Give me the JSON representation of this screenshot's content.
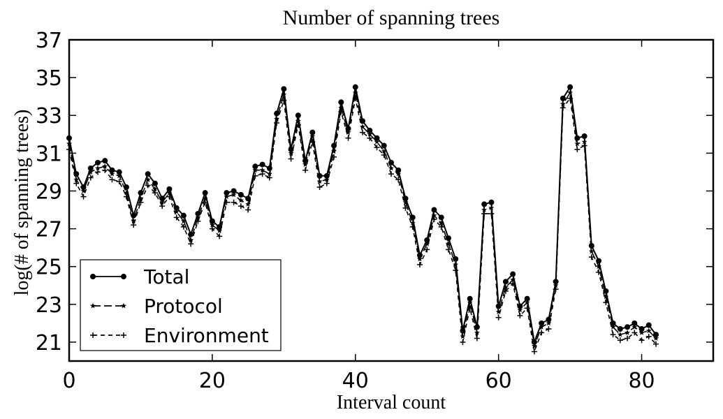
{
  "chart_data": {
    "type": "line",
    "title": "Number of spanning trees",
    "xlabel": "Interval count",
    "ylabel": "log(# of spanning trees)",
    "xlim": [
      0,
      90
    ],
    "ylim": [
      20,
      37
    ],
    "xticks": [
      0,
      20,
      40,
      60,
      80
    ],
    "yticks": [
      21,
      23,
      25,
      27,
      29,
      31,
      33,
      35,
      37
    ],
    "grid": false,
    "legend": "lower-left",
    "x": [
      0,
      1,
      2,
      3,
      4,
      5,
      6,
      7,
      8,
      9,
      10,
      11,
      12,
      13,
      14,
      15,
      16,
      17,
      18,
      19,
      20,
      21,
      22,
      23,
      24,
      25,
      26,
      27,
      28,
      29,
      30,
      31,
      32,
      33,
      34,
      35,
      36,
      37,
      38,
      39,
      40,
      41,
      42,
      43,
      44,
      45,
      46,
      47,
      48,
      49,
      50,
      51,
      52,
      53,
      54,
      55,
      56,
      57,
      58,
      59,
      60,
      61,
      62,
      63,
      64,
      65,
      66,
      67,
      68,
      69,
      70,
      71,
      72,
      73,
      74,
      75,
      76,
      77,
      78,
      79,
      80,
      81,
      82
    ],
    "series": [
      {
        "name": "Total",
        "marker": "circle",
        "dash": "solid",
        "values": [
          31.8,
          29.9,
          29.2,
          30.2,
          30.5,
          30.6,
          30.1,
          30.0,
          29.2,
          27.7,
          28.9,
          29.9,
          29.4,
          28.6,
          29.1,
          28.1,
          27.7,
          26.7,
          27.8,
          28.9,
          27.4,
          27.1,
          28.9,
          29.0,
          28.8,
          28.6,
          30.3,
          30.4,
          30.2,
          33.1,
          34.4,
          31.2,
          33.0,
          30.6,
          32.1,
          29.8,
          29.8,
          31.4,
          33.7,
          32.3,
          34.5,
          32.7,
          32.2,
          31.8,
          31.4,
          30.5,
          30.1,
          28.6,
          27.6,
          25.6,
          26.4,
          28.0,
          27.6,
          26.5,
          25.4,
          21.6,
          23.3,
          21.8,
          28.3,
          28.4,
          22.9,
          24.2,
          24.6,
          22.9,
          23.3,
          21.0,
          22.0,
          22.2,
          24.2,
          33.9,
          34.5,
          31.8,
          31.9,
          26.1,
          25.3,
          23.7,
          22.0,
          21.7,
          21.8,
          22.0,
          21.7,
          21.9,
          21.4
        ]
      },
      {
        "name": "Protocol",
        "marker": "star",
        "dash": "longdash",
        "values": [
          31.5,
          29.6,
          29.0,
          30.0,
          30.2,
          30.3,
          29.9,
          29.8,
          28.9,
          27.4,
          28.6,
          29.6,
          29.1,
          28.4,
          28.9,
          27.9,
          27.4,
          26.4,
          27.6,
          28.6,
          27.2,
          26.9,
          28.7,
          28.8,
          28.5,
          28.3,
          30.1,
          30.1,
          29.9,
          32.8,
          34.1,
          31.0,
          32.7,
          30.4,
          31.9,
          29.5,
          29.6,
          31.1,
          33.4,
          32.1,
          34.2,
          32.4,
          32.0,
          31.6,
          31.1,
          30.2,
          29.9,
          28.4,
          27.3,
          25.4,
          26.2,
          27.7,
          27.3,
          26.2,
          25.1,
          21.3,
          23.1,
          21.5,
          28.0,
          28.1,
          22.6,
          23.9,
          24.3,
          22.7,
          23.1,
          20.8,
          21.8,
          22.0,
          24.0,
          33.6,
          34.2,
          31.5,
          31.6,
          25.8,
          25.0,
          23.4,
          21.8,
          21.4,
          21.5,
          21.8,
          21.5,
          21.6,
          21.2
        ]
      },
      {
        "name": "Environment",
        "marker": "plus",
        "dash": "shortdash",
        "values": [
          31.2,
          29.4,
          28.7,
          29.7,
          30.0,
          30.1,
          29.6,
          29.5,
          28.7,
          27.2,
          28.4,
          29.3,
          28.9,
          28.2,
          28.7,
          27.6,
          27.1,
          26.2,
          27.4,
          28.4,
          27.0,
          26.6,
          28.4,
          28.4,
          28.2,
          28.0,
          29.8,
          29.9,
          29.7,
          32.6,
          33.8,
          30.7,
          32.5,
          30.1,
          31.6,
          29.2,
          29.4,
          30.8,
          33.2,
          31.8,
          33.9,
          32.1,
          31.8,
          31.3,
          30.9,
          29.9,
          29.6,
          28.1,
          27.1,
          25.1,
          25.9,
          27.5,
          27.1,
          25.9,
          24.8,
          21.0,
          22.8,
          21.2,
          27.8,
          27.8,
          22.3,
          23.7,
          24.1,
          22.4,
          22.8,
          20.5,
          21.5,
          21.7,
          23.8,
          33.4,
          33.9,
          31.2,
          31.4,
          25.5,
          24.7,
          23.1,
          21.4,
          21.1,
          21.2,
          21.5,
          21.1,
          21.3,
          20.9
        ]
      }
    ]
  }
}
